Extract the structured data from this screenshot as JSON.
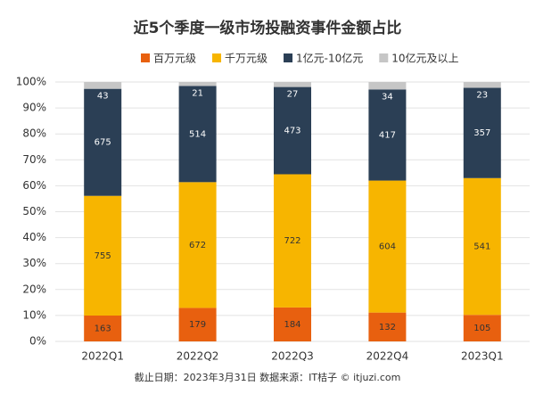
{
  "chart_data": {
    "type": "bar",
    "stack": "percent",
    "title": "近5个季度一级市场投融资事件金额占比",
    "categories": [
      "2022Q1",
      "2022Q2",
      "2022Q3",
      "2022Q4",
      "2023Q1"
    ],
    "series": [
      {
        "name": "百万元级",
        "color": "#e8600f",
        "values": [
          163,
          179,
          184,
          132,
          105
        ]
      },
      {
        "name": "千万元级",
        "color": "#f7b500",
        "values": [
          755,
          672,
          722,
          604,
          541
        ]
      },
      {
        "name": "1亿元-10亿元",
        "color": "#2b3f55",
        "values": [
          675,
          514,
          473,
          417,
          357
        ]
      },
      {
        "name": "10亿元及以上",
        "color": "#c6c6c6",
        "values": [
          43,
          21,
          27,
          34,
          23
        ]
      }
    ],
    "ylim": [
      0,
      100
    ],
    "yticks": [
      {
        "value": 0,
        "label": "0%"
      },
      {
        "value": 10,
        "label": "10%"
      },
      {
        "value": 20,
        "label": "20%"
      },
      {
        "value": 30,
        "label": "30%"
      },
      {
        "value": 40,
        "label": "40%"
      },
      {
        "value": 50,
        "label": "50%"
      },
      {
        "value": 60,
        "label": "60%"
      },
      {
        "value": 70,
        "label": "70%"
      },
      {
        "value": 80,
        "label": "80%"
      },
      {
        "value": 90,
        "label": "90%"
      },
      {
        "value": 100,
        "label": "100%"
      }
    ],
    "grid": true,
    "legend": "top",
    "source": "截止日期：2023年3月31日    数据来源：IT桔子 © itjuzi.com"
  }
}
